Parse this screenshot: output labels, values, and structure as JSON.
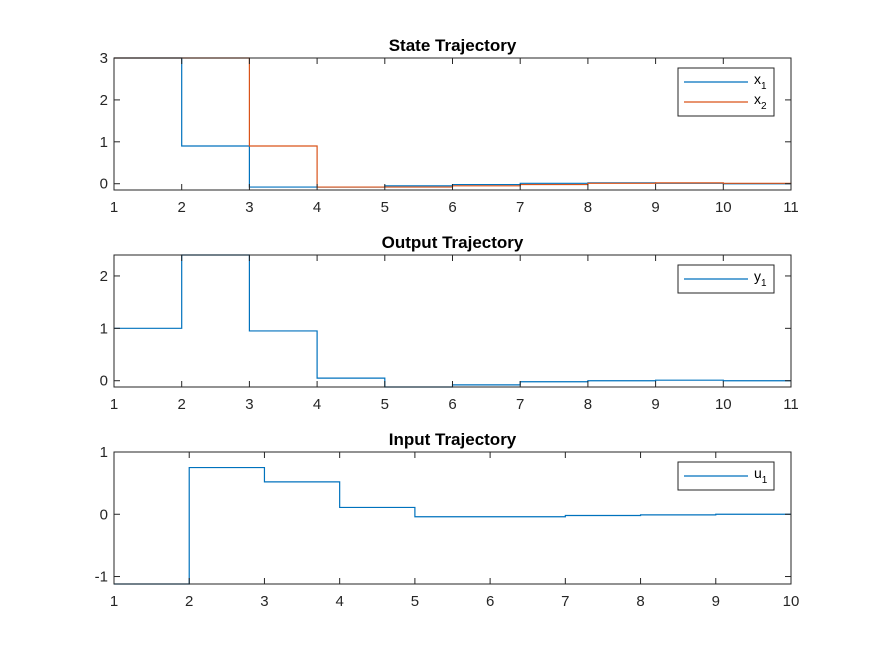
{
  "chart_data": [
    {
      "type": "line",
      "step": true,
      "title": "State Trajectory",
      "xlabel": "",
      "ylabel": "",
      "xlim": [
        1,
        11
      ],
      "ylim": [
        -0.15,
        3
      ],
      "xticks": [
        1,
        2,
        3,
        4,
        5,
        6,
        7,
        8,
        9,
        10,
        11
      ],
      "yticks": [
        0,
        1,
        2,
        3
      ],
      "legend_position": "top-right",
      "x": [
        1,
        2,
        3,
        4,
        5,
        6,
        7,
        8,
        9,
        10,
        11
      ],
      "series": [
        {
          "name": "x",
          "subscript": "1",
          "color": "#0072BD",
          "values": [
            3,
            0.9,
            -0.08,
            -0.08,
            -0.05,
            -0.02,
            0.01,
            0.02,
            0.01,
            0.0,
            0.0
          ]
        },
        {
          "name": "x",
          "subscript": "2",
          "color": "#D95319",
          "values": [
            3,
            3,
            0.9,
            -0.08,
            -0.08,
            -0.05,
            -0.02,
            0.01,
            0.02,
            0.01,
            0.0
          ]
        }
      ]
    },
    {
      "type": "line",
      "step": true,
      "title": "Output Trajectory",
      "xlabel": "",
      "ylabel": "",
      "xlim": [
        1,
        11
      ],
      "ylim": [
        -0.12,
        2.4
      ],
      "xticks": [
        1,
        2,
        3,
        4,
        5,
        6,
        7,
        8,
        9,
        10,
        11
      ],
      "yticks": [
        0,
        1,
        2
      ],
      "legend_position": "top-right",
      "x": [
        1,
        2,
        3,
        4,
        5,
        6,
        7,
        8,
        9,
        10,
        11
      ],
      "series": [
        {
          "name": "y",
          "subscript": "1",
          "color": "#0072BD",
          "values": [
            1,
            2.4,
            0.95,
            0.05,
            -0.12,
            -0.08,
            -0.02,
            0.0,
            0.01,
            0.0,
            0.0
          ]
        }
      ]
    },
    {
      "type": "line",
      "step": true,
      "title": "Input Trajectory",
      "xlabel": "",
      "ylabel": "",
      "xlim": [
        1,
        10
      ],
      "ylim": [
        -1.12,
        1
      ],
      "xticks": [
        1,
        2,
        3,
        4,
        5,
        6,
        7,
        8,
        9,
        10
      ],
      "yticks": [
        -1,
        0,
        1
      ],
      "legend_position": "top-right",
      "x": [
        1,
        2,
        3,
        4,
        5,
        6,
        7,
        8,
        9,
        10
      ],
      "series": [
        {
          "name": "u",
          "subscript": "1",
          "color": "#0072BD",
          "values": [
            -1.12,
            0.75,
            0.52,
            0.11,
            -0.04,
            -0.04,
            -0.02,
            -0.01,
            0.0,
            0.0
          ]
        }
      ]
    }
  ]
}
